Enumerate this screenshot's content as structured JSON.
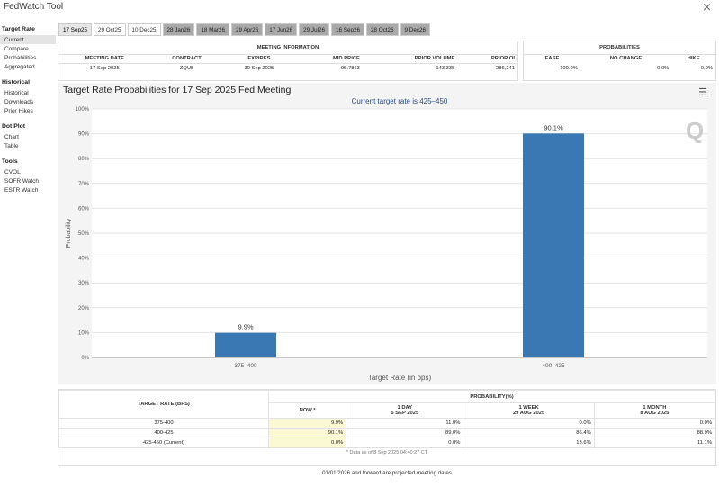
{
  "window": {
    "title": "FedWatch Tool",
    "close_icon": "close-x-icon"
  },
  "sidebar": [
    {
      "header": "Target Rate",
      "items": [
        {
          "label": "Current",
          "active": true
        },
        {
          "label": "Compare"
        },
        {
          "label": "Probabilities"
        },
        {
          "label": "Aggregated"
        }
      ]
    },
    {
      "header": "Historical",
      "items": [
        {
          "label": "Historical"
        },
        {
          "label": "Downloads"
        },
        {
          "label": "Prior Hikes"
        }
      ]
    },
    {
      "header": "Dot Plot",
      "items": [
        {
          "label": "Chart"
        },
        {
          "label": "Table"
        }
      ]
    },
    {
      "header": "Tools",
      "items": [
        {
          "label": "CVOL"
        },
        {
          "label": "SOFR Watch"
        },
        {
          "label": "ESTR Watch"
        }
      ]
    }
  ],
  "tabs": [
    {
      "label": "17 Sep25",
      "state": "selected"
    },
    {
      "label": "29 Oct25",
      "state": "light"
    },
    {
      "label": "10 Dec25",
      "state": "light"
    },
    {
      "label": "28 Jan26",
      "state": "dark"
    },
    {
      "label": "18 Mar26",
      "state": "dark"
    },
    {
      "label": "29 Apr26",
      "state": "dark"
    },
    {
      "label": "17 Jun26",
      "state": "dark"
    },
    {
      "label": "29 Jul26",
      "state": "dark"
    },
    {
      "label": "16 Sep26",
      "state": "dark"
    },
    {
      "label": "28 Oct26",
      "state": "dark"
    },
    {
      "label": "9 Dec26",
      "state": "dark"
    }
  ],
  "meeting": {
    "group_title": "MEETING INFORMATION",
    "headers": [
      "MEETING DATE",
      "CONTRACT",
      "EXPIRES",
      "MID PRICE",
      "PRIOR VOLUME",
      "PRIOR OI"
    ],
    "row": [
      "17 Sep 2025",
      "ZQU5",
      "30 Sep 2025",
      "95.7863",
      "143,335",
      "286,241"
    ]
  },
  "probabilities": {
    "group_title": "PROBABILITIES",
    "headers": [
      "EASE",
      "NO CHANGE",
      "HIKE"
    ],
    "row": [
      "100.0%",
      "0.0%",
      "0.0%"
    ]
  },
  "chart": {
    "menu_icon": "hamburger-menu-icon",
    "watermark": "Q"
  },
  "chart_data": {
    "type": "bar",
    "title": "Target Rate Probabilities for 17 Sep 2025 Fed Meeting",
    "subtitle": "Current target rate is 425–450",
    "xlabel": "Target Rate (in bps)",
    "ylabel": "Probability",
    "categories": [
      "375–400",
      "400–425"
    ],
    "values": [
      9.9,
      90.1
    ],
    "data_labels": [
      "9.9%",
      "90.1%"
    ],
    "ylim": [
      0,
      100
    ],
    "yticks": [
      "0%",
      "10%",
      "20%",
      "30%",
      "40%",
      "50%",
      "60%",
      "70%",
      "80%",
      "90%",
      "100%"
    ],
    "grid": true,
    "color": "#3a78b4"
  },
  "bottom_table": {
    "col_target": "TARGET RATE (BPS)",
    "col_prob": "PROBABILITY(%)",
    "subheaders": [
      {
        "line1": "NOW *",
        "line2": ""
      },
      {
        "line1": "1 DAY",
        "line2": "5 SEP 2025"
      },
      {
        "line1": "1 WEEK",
        "line2": "29 AUG 2025"
      },
      {
        "line1": "1 MONTH",
        "line2": "8 AUG 2025"
      }
    ],
    "rows": [
      {
        "rate": "375-400",
        "vals": [
          "9.9%",
          "11.0%",
          "0.0%",
          "0.0%"
        ]
      },
      {
        "rate": "400-425",
        "vals": [
          "90.1%",
          "89.0%",
          "86.4%",
          "88.9%"
        ]
      },
      {
        "rate": "425-450 (Current)",
        "vals": [
          "0.0%",
          "0.0%",
          "13.6%",
          "11.1%"
        ]
      }
    ],
    "note": "* Data as of 8 Sep 2025 04:40:27 CT"
  },
  "footer": "01/01/2026 and forward are projected meeting dates"
}
